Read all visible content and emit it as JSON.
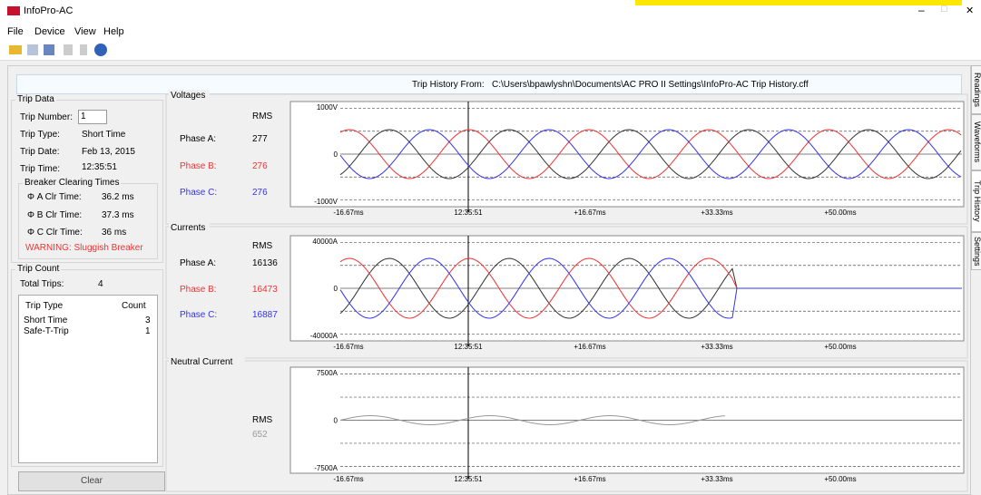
{
  "title_bar": {
    "title": "InfoPro-AC",
    "minimize": "–",
    "maximize": "□",
    "close": "✕"
  },
  "menu": [
    "File",
    "Device",
    "View",
    "Help"
  ],
  "trip_history": {
    "label": "Trip History From:",
    "path": "C:\\Users\\bpawlyshn\\Documents\\AC PRO II Settings\\InfoPro-AC Trip History.cff"
  },
  "tabs": [
    "Readings",
    "Waveforms",
    "Trip History",
    "Settings"
  ],
  "trip_data": {
    "title": "Trip Data",
    "number_label": "Trip Number:",
    "number": "1",
    "type_label": "Trip Type:",
    "type": "Short Time",
    "date_label": "Trip Date:",
    "date": "Feb 13, 2015",
    "time_label": "Trip Time:",
    "time": "12:35:51"
  },
  "breaker": {
    "title": "Breaker Clearing Times",
    "rows": [
      [
        "Φ A Clr Time:",
        "36.2 ms"
      ],
      [
        "Φ B Clr Time:",
        "37.3 ms"
      ],
      [
        "Φ C Clr Time:",
        "36 ms"
      ]
    ],
    "warning": "WARNING: Sluggish Breaker"
  },
  "trip_count": {
    "title": "Trip Count",
    "total_label": "Total Trips:",
    "total": "4",
    "headers": [
      "Trip Type",
      "Count"
    ],
    "rows": [
      [
        "Short Time",
        "3"
      ],
      [
        "Safe-T-Trip",
        "1"
      ]
    ],
    "clear": "Clear"
  },
  "charts": [
    {
      "title": "Voltages",
      "rms_label": "RMS",
      "phases": [
        {
          "label": "Phase A:",
          "value": "277",
          "color": "#333333"
        },
        {
          "label": "Phase B:",
          "value": "276",
          "color": "#ee3333"
        },
        {
          "label": "Phase C:",
          "value": "276",
          "color": "#3333ee"
        }
      ],
      "y_labels": [
        "1000V",
        "0",
        "-1000V"
      ],
      "x_labels": [
        "-16.67ms",
        "12:35:51",
        "+16.67ms",
        "+33.33ms",
        "+50.00ms"
      ]
    },
    {
      "title": "Currents",
      "rms_label": "RMS",
      "phases": [
        {
          "label": "Phase A:",
          "value": "16136",
          "color": "#333333"
        },
        {
          "label": "Phase B:",
          "value": "16473",
          "color": "#ee3333"
        },
        {
          "label": "Phase C:",
          "value": "16887",
          "color": "#3333ee"
        }
      ],
      "y_labels": [
        "40000A",
        "0",
        "-40000A"
      ],
      "x_labels": [
        "-16.67ms",
        "12:35:51",
        "+16.67ms",
        "+33.33ms",
        "+50.00ms"
      ]
    },
    {
      "title": "Neutral Current",
      "rms_label": "RMS",
      "phases": [
        {
          "value": "652",
          "color": "#999999"
        }
      ],
      "y_labels": [
        "7500A",
        "0",
        "-7500A"
      ],
      "x_labels": [
        "-16.67ms",
        "12:35:51",
        "+16.67ms",
        "+33.33ms",
        "+50.00ms"
      ]
    }
  ]
}
